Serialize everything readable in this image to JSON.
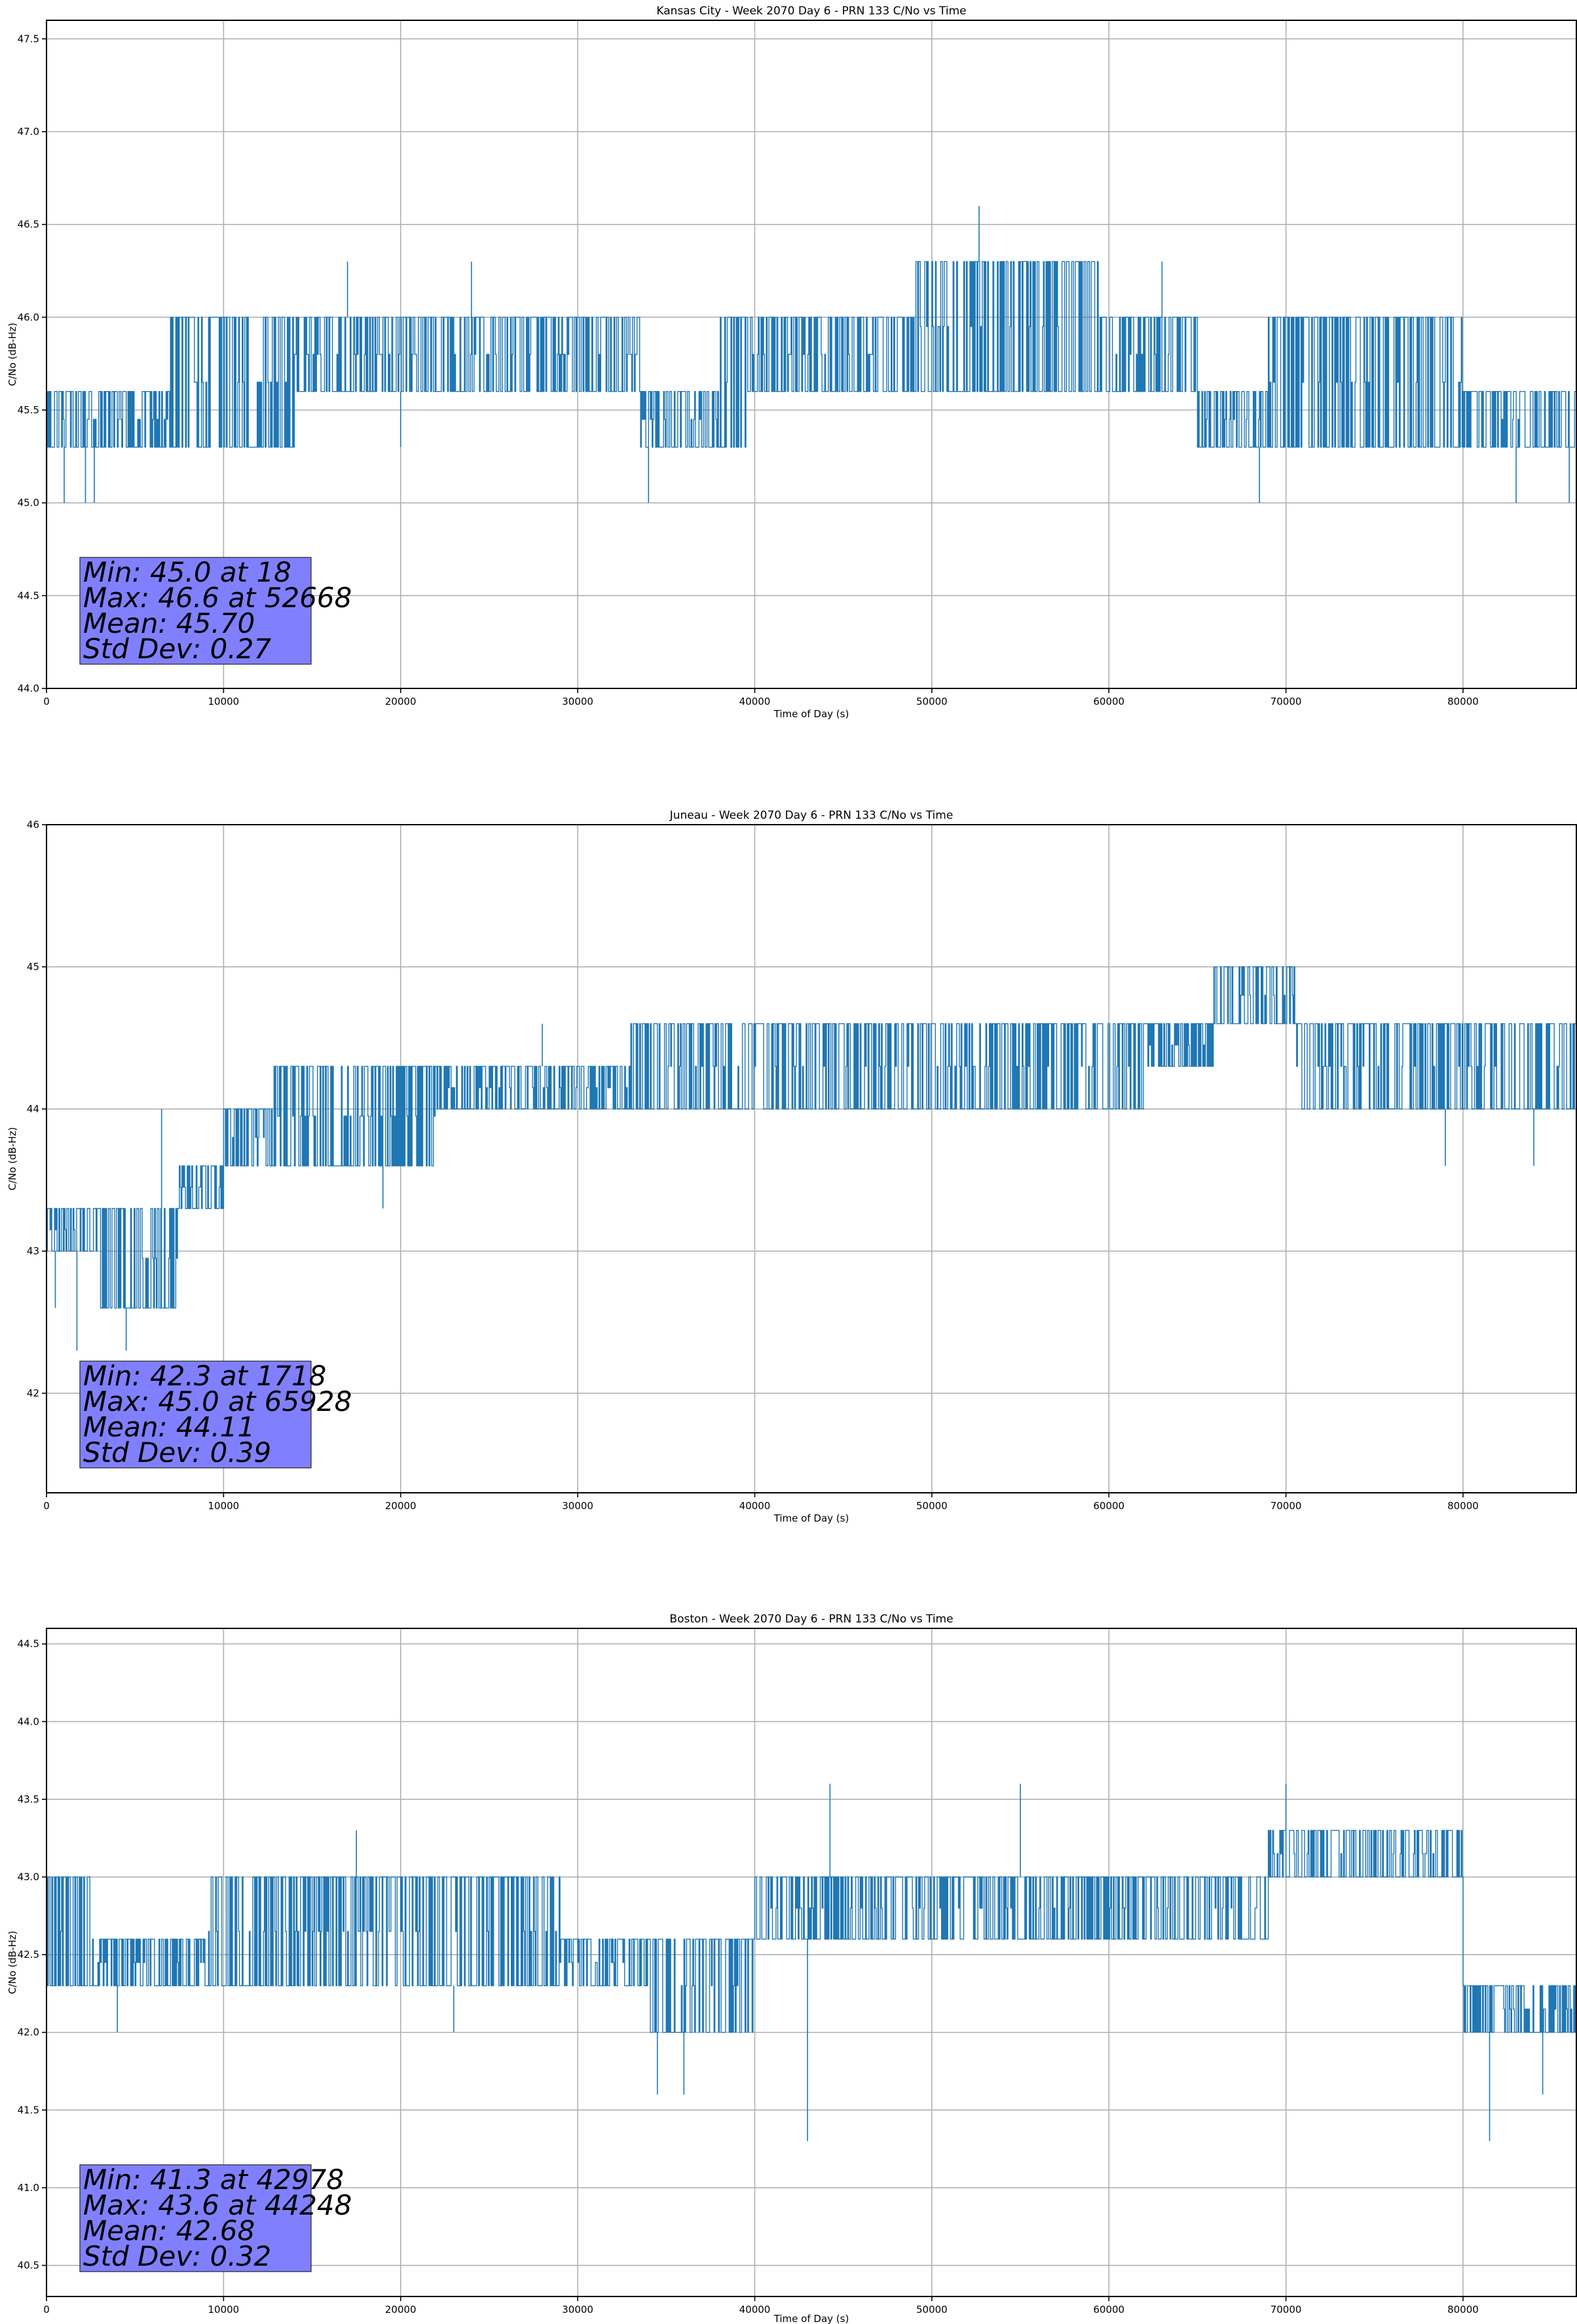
{
  "series_color": "#1f77b4",
  "stats_box_color": "#8080ff",
  "chart_data": [
    {
      "type": "line",
      "title": "Kansas City - Week 2070 Day 6 - PRN 133 C/No vs Time",
      "xlabel": "Time of Day (s)",
      "ylabel": "C/No (dB-Hz)",
      "xlim": [
        0,
        86400
      ],
      "ylim": [
        44.0,
        47.6
      ],
      "xticks": [
        0,
        10000,
        20000,
        30000,
        40000,
        50000,
        60000,
        70000,
        80000
      ],
      "xtick_labels": [
        "0",
        "10000",
        "20000",
        "30000",
        "40000",
        "50000",
        "60000",
        "70000",
        "80000"
      ],
      "yticks": [
        44.0,
        44.5,
        45.0,
        45.5,
        46.0,
        46.5,
        47.0,
        47.5
      ],
      "ytick_labels": [
        "44.0",
        "44.5",
        "45.0",
        "45.5",
        "46.0",
        "46.5",
        "47.0",
        "47.5"
      ],
      "grid": true,
      "bands": [
        {
          "from": 0,
          "to": 7000,
          "low": 45.3,
          "high": 45.6
        },
        {
          "from": 7000,
          "to": 14000,
          "low": 45.3,
          "high": 46.0
        },
        {
          "from": 14000,
          "to": 33500,
          "low": 45.6,
          "high": 46.0
        },
        {
          "from": 33500,
          "to": 38000,
          "low": 45.3,
          "high": 45.6
        },
        {
          "from": 38000,
          "to": 39500,
          "low": 45.3,
          "high": 46.0
        },
        {
          "from": 39500,
          "to": 49000,
          "low": 45.6,
          "high": 46.0
        },
        {
          "from": 49000,
          "to": 59500,
          "low": 45.6,
          "high": 46.3
        },
        {
          "from": 59500,
          "to": 65000,
          "low": 45.6,
          "high": 46.0
        },
        {
          "from": 65000,
          "to": 69000,
          "low": 45.3,
          "high": 45.6
        },
        {
          "from": 69000,
          "to": 80000,
          "low": 45.3,
          "high": 46.0
        },
        {
          "from": 80000,
          "to": 86400,
          "low": 45.3,
          "high": 45.6
        }
      ],
      "spikes": [
        {
          "x": 18,
          "y": 45.0
        },
        {
          "x": 1000,
          "y": 45.0
        },
        {
          "x": 2200,
          "y": 45.0
        },
        {
          "x": 2700,
          "y": 45.0
        },
        {
          "x": 17000,
          "y": 46.3
        },
        {
          "x": 20000,
          "y": 45.3
        },
        {
          "x": 24000,
          "y": 46.3
        },
        {
          "x": 34000,
          "y": 45.0
        },
        {
          "x": 52668,
          "y": 46.6
        },
        {
          "x": 63000,
          "y": 46.3
        },
        {
          "x": 68500,
          "y": 45.0
        },
        {
          "x": 83000,
          "y": 45.0
        },
        {
          "x": 86000,
          "y": 45.0
        }
      ],
      "stats": [
        "Min: 45.0 at 18",
        "Max: 46.6 at 52668",
        "Mean: 45.70",
        "Std Dev: 0.27"
      ]
    },
    {
      "type": "line",
      "title": "Juneau - Week 2070 Day 6 - PRN 133 C/No vs Time",
      "xlabel": "Time of Day (s)",
      "ylabel": "C/No (dB-Hz)",
      "xlim": [
        0,
        86400
      ],
      "ylim": [
        41.3,
        46.0
      ],
      "xticks": [
        0,
        10000,
        20000,
        30000,
        40000,
        50000,
        60000,
        70000,
        80000
      ],
      "xtick_labels": [
        "0",
        "10000",
        "20000",
        "30000",
        "40000",
        "50000",
        "60000",
        "70000",
        "80000"
      ],
      "yticks": [
        42,
        43,
        44,
        45,
        46
      ],
      "ytick_labels": [
        "42",
        "43",
        "44",
        "45",
        "46"
      ],
      "grid": true,
      "bands": [
        {
          "from": 0,
          "to": 3000,
          "low": 43.0,
          "high": 43.3
        },
        {
          "from": 3000,
          "to": 7500,
          "low": 42.6,
          "high": 43.3
        },
        {
          "from": 7500,
          "to": 10000,
          "low": 43.3,
          "high": 43.6
        },
        {
          "from": 10000,
          "to": 12800,
          "low": 43.6,
          "high": 44.0
        },
        {
          "from": 12800,
          "to": 22000,
          "low": 43.6,
          "high": 44.3
        },
        {
          "from": 22000,
          "to": 33000,
          "low": 44.0,
          "high": 44.3
        },
        {
          "from": 33000,
          "to": 44500,
          "low": 44.0,
          "high": 44.6
        },
        {
          "from": 44500,
          "to": 62000,
          "low": 44.0,
          "high": 44.6
        },
        {
          "from": 62000,
          "to": 66000,
          "low": 44.3,
          "high": 44.6
        },
        {
          "from": 66000,
          "to": 70500,
          "low": 44.6,
          "high": 45.0
        },
        {
          "from": 70500,
          "to": 80000,
          "low": 44.0,
          "high": 44.6
        },
        {
          "from": 80000,
          "to": 86400,
          "low": 44.0,
          "high": 44.6
        }
      ],
      "spikes": [
        {
          "x": 1718,
          "y": 42.3
        },
        {
          "x": 500,
          "y": 42.6
        },
        {
          "x": 4500,
          "y": 42.3
        },
        {
          "x": 6500,
          "y": 44.0
        },
        {
          "x": 19000,
          "y": 43.3
        },
        {
          "x": 28000,
          "y": 44.6
        },
        {
          "x": 65928,
          "y": 45.0
        },
        {
          "x": 79000,
          "y": 43.6
        },
        {
          "x": 84000,
          "y": 43.6
        }
      ],
      "stats": [
        "Min: 42.3 at 1718",
        "Max: 45.0 at 65928",
        "Mean: 44.11",
        "Std Dev: 0.39"
      ]
    },
    {
      "type": "line",
      "title": "Boston - Week 2070 Day 6 - PRN 133 C/No vs Time",
      "xlabel": "Time of Day (s)",
      "ylabel": "C/No (dB-Hz)",
      "xlim": [
        0,
        86400
      ],
      "ylim": [
        40.3,
        44.6
      ],
      "xticks": [
        0,
        10000,
        20000,
        30000,
        40000,
        50000,
        60000,
        70000,
        80000
      ],
      "xtick_labels": [
        "0",
        "10000",
        "20000",
        "30000",
        "40000",
        "50000",
        "60000",
        "70000",
        "80000"
      ],
      "yticks": [
        40.5,
        41.0,
        41.5,
        42.0,
        42.5,
        43.0,
        43.5,
        44.0,
        44.5
      ],
      "ytick_labels": [
        "40.5",
        "41.0",
        "41.5",
        "42.0",
        "42.5",
        "43.0",
        "43.5",
        "44.0",
        "44.5"
      ],
      "grid": true,
      "bands": [
        {
          "from": 0,
          "to": 2500,
          "low": 42.3,
          "high": 43.0
        },
        {
          "from": 2500,
          "to": 9000,
          "low": 42.3,
          "high": 42.6
        },
        {
          "from": 9000,
          "to": 29000,
          "low": 42.3,
          "high": 43.0
        },
        {
          "from": 29000,
          "to": 34000,
          "low": 42.3,
          "high": 42.6
        },
        {
          "from": 34000,
          "to": 40000,
          "low": 42.0,
          "high": 42.6
        },
        {
          "from": 40000,
          "to": 69000,
          "low": 42.6,
          "high": 43.0
        },
        {
          "from": 69000,
          "to": 80000,
          "low": 43.0,
          "high": 43.3
        },
        {
          "from": 80000,
          "to": 86400,
          "low": 42.0,
          "high": 42.3
        }
      ],
      "spikes": [
        {
          "x": 4000,
          "y": 42.0
        },
        {
          "x": 17500,
          "y": 43.3
        },
        {
          "x": 23000,
          "y": 42.0
        },
        {
          "x": 34500,
          "y": 41.6
        },
        {
          "x": 36000,
          "y": 41.6
        },
        {
          "x": 42978,
          "y": 41.3
        },
        {
          "x": 44248,
          "y": 43.6
        },
        {
          "x": 55000,
          "y": 43.6
        },
        {
          "x": 70000,
          "y": 43.6
        },
        {
          "x": 81500,
          "y": 41.3
        },
        {
          "x": 84500,
          "y": 41.6
        }
      ],
      "stats": [
        "Min: 41.3 at 42978",
        "Max: 43.6 at 44248",
        "Mean: 42.68",
        "Std Dev: 0.32"
      ]
    }
  ]
}
